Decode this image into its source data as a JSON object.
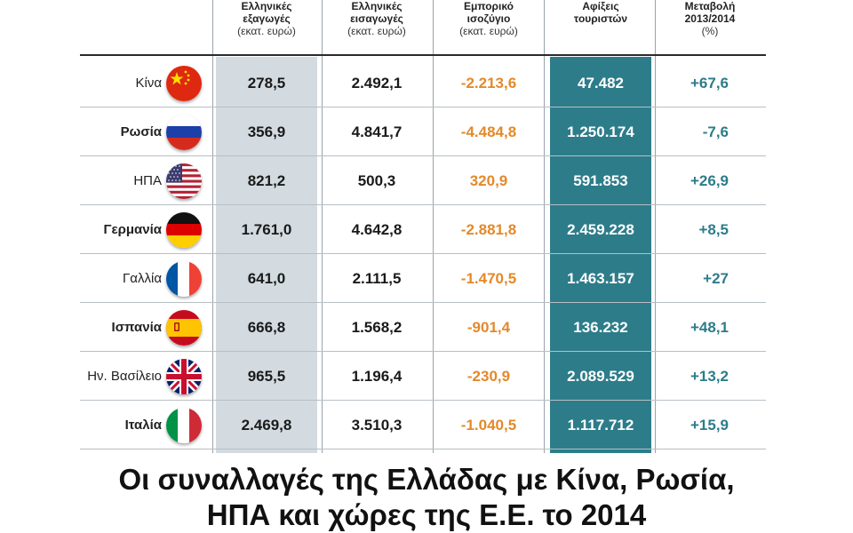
{
  "headers": {
    "exports": {
      "line1": "Ελληνικές",
      "line2": "εξαγωγές",
      "unit": "(εκατ. ευρώ)"
    },
    "imports": {
      "line1": "Ελληνικές",
      "line2": "εισαγωγές",
      "unit": "(εκατ. ευρώ)"
    },
    "balance": {
      "line1": "Εμπορικό",
      "line2": "ισοζύγιο",
      "unit": "(εκατ. ευρώ)"
    },
    "arrivals": {
      "line1": "Αφίξεις",
      "line2": "τουριστών",
      "unit": ""
    },
    "change": {
      "line1": "Μεταβολή",
      "line2": "2013/2014",
      "unit": "(%)"
    }
  },
  "chart_data": {
    "type": "table",
    "title": "Οι συναλλαγές της Ελλάδας με Κίνα, Ρωσία, ΗΠΑ και χώρες της Ε.Ε. το 2014",
    "title_line1": "Οι συναλλαγές της Ελλάδας με Κίνα, Ρωσία,",
    "title_line2": "ΗΠΑ και χώρες της Ε.Ε. το 2014",
    "columns": [
      "Ελληνικές εξαγωγές (εκατ. ευρώ)",
      "Ελληνικές εισαγωγές (εκατ. ευρώ)",
      "Εμπορικό ισοζύγιο (εκατ. ευρώ)",
      "Αφίξεις τουριστών",
      "Μεταβολή 2013/2014 (%)"
    ],
    "rows": [
      {
        "country": "Κίνα",
        "flag": "china-flag",
        "bold": false,
        "exports": "278,5",
        "imports": "2.492,1",
        "balance": "-2.213,6",
        "arrivals": "47.482",
        "change": "+67,6"
      },
      {
        "country": "Ρωσία",
        "flag": "russia-flag",
        "bold": true,
        "exports": "356,9",
        "imports": "4.841,7",
        "balance": "-4.484,8",
        "arrivals": "1.250.174",
        "change": "-7,6"
      },
      {
        "country": "ΗΠΑ",
        "flag": "usa-flag",
        "bold": false,
        "exports": "821,2",
        "imports": "500,3",
        "balance": "320,9",
        "arrivals": "591.853",
        "change": "+26,9"
      },
      {
        "country": "Γερμανία",
        "flag": "germany-flag",
        "bold": true,
        "exports": "1.761,0",
        "imports": "4.642,8",
        "balance": "-2.881,8",
        "arrivals": "2.459.228",
        "change": "+8,5"
      },
      {
        "country": "Γαλλία",
        "flag": "france-flag",
        "bold": false,
        "exports": "641,0",
        "imports": "2.111,5",
        "balance": "-1.470,5",
        "arrivals": "1.463.157",
        "change": "+27"
      },
      {
        "country": "Ισπανία",
        "flag": "spain-flag",
        "bold": true,
        "exports": "666,8",
        "imports": "1.568,2",
        "balance": "-901,4",
        "arrivals": "136.232",
        "change": "+48,1"
      },
      {
        "country": "Ην. Βασίλειο",
        "flag": "uk-flag",
        "bold": false,
        "exports": "965,5",
        "imports": "1.196,4",
        "balance": "-230,9",
        "arrivals": "2.089.529",
        "change": "+13,2"
      },
      {
        "country": "Ιταλία",
        "flag": "italy-flag",
        "bold": true,
        "exports": "2.469,8",
        "imports": "3.510,3",
        "balance": "-1.040,5",
        "arrivals": "1.117.712",
        "change": "+15,9"
      }
    ]
  },
  "colors": {
    "exports_bg": "#d3dbe1",
    "arrivals_bg": "#2d7c8a",
    "balance_text": "#e3892a",
    "change_text": "#2d7c8a"
  }
}
